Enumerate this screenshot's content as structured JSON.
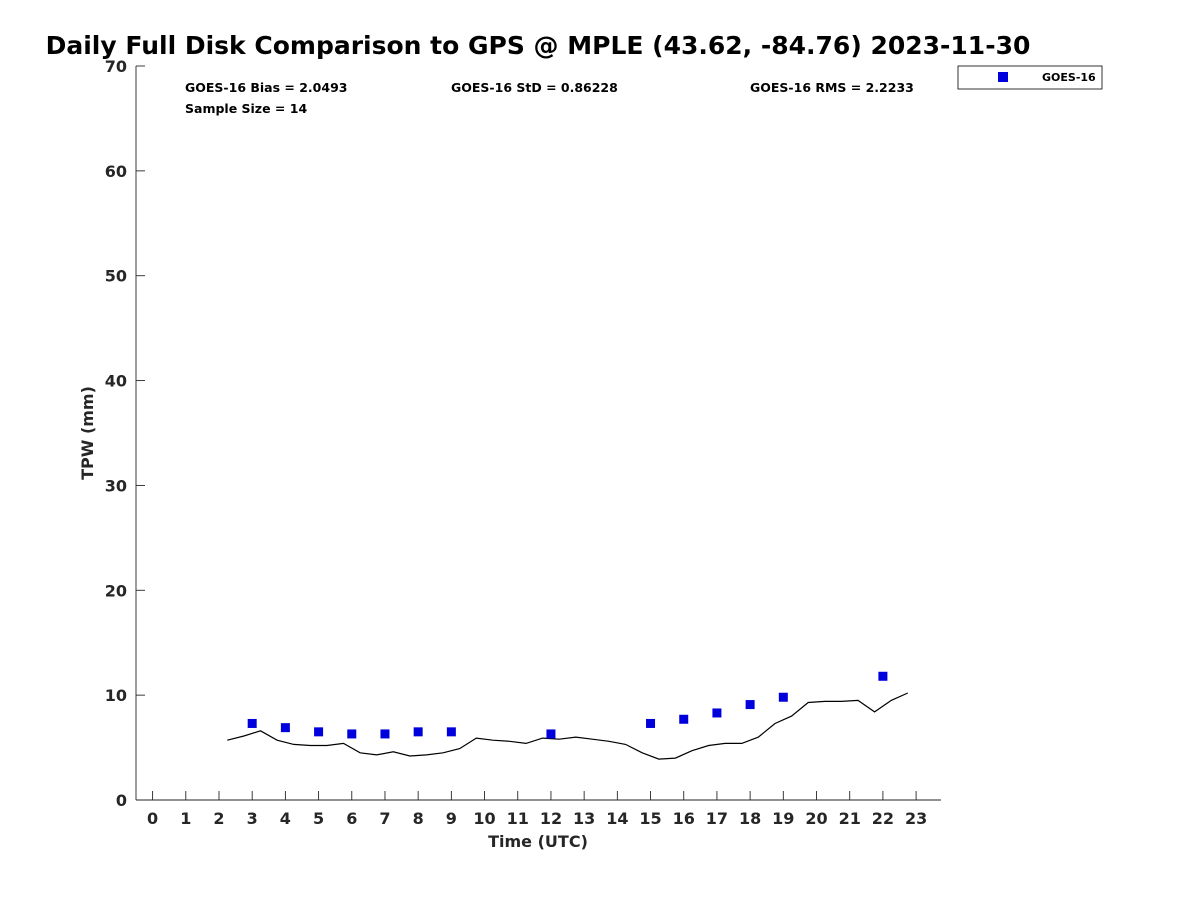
{
  "chart_data": {
    "type": "scatter",
    "title": "Daily Full Disk Comparison to GPS @ MPLE (43.62, -84.76) 2023-11-30",
    "xlabel": "Time (UTC)",
    "ylabel": "TPW (mm)",
    "xlim": [
      -0.5,
      23.75
    ],
    "ylim": [
      0,
      70
    ],
    "x_ticks": [
      0,
      1,
      2,
      3,
      4,
      5,
      6,
      7,
      8,
      9,
      10,
      11,
      12,
      13,
      14,
      15,
      16,
      17,
      18,
      19,
      20,
      21,
      22,
      23
    ],
    "y_ticks": [
      0,
      10,
      20,
      30,
      40,
      50,
      60,
      70
    ],
    "grid": false,
    "legend_position": "top-right",
    "stats": {
      "bias": "GOES-16 Bias = 2.0493",
      "std": "GOES-16 StD = 0.86228",
      "rms": "GOES-16 RMS = 2.2233",
      "sample_size": "Sample Size = 14"
    },
    "series": [
      {
        "name": "GOES-16",
        "type": "scatter",
        "color": "#0000dd",
        "x": [
          3,
          4,
          5,
          6,
          7,
          8,
          9,
          12,
          15,
          16,
          17,
          18,
          19,
          22
        ],
        "y": [
          7.3,
          6.9,
          6.5,
          6.3,
          6.3,
          6.5,
          6.5,
          6.3,
          7.3,
          7.7,
          8.3,
          9.1,
          9.8,
          11.8
        ]
      },
      {
        "type": "line",
        "color": "#000000",
        "x": [
          2.25,
          2.75,
          3.25,
          3.75,
          4.25,
          4.75,
          5.25,
          5.75,
          6.25,
          6.75,
          7.25,
          7.75,
          8.25,
          8.75,
          9.25,
          9.75,
          10.25,
          10.75,
          11.25,
          11.75,
          12.25,
          12.75,
          13.25,
          13.75,
          14.25,
          14.75,
          15.25,
          15.75,
          16.25,
          16.75,
          17.25,
          17.75,
          18.25,
          18.75,
          19.25,
          19.75,
          20.25,
          20.75,
          21.25,
          21.75,
          22.25,
          22.75
        ],
        "y": [
          5.7,
          6.1,
          6.6,
          5.7,
          5.3,
          5.2,
          5.2,
          5.4,
          4.5,
          4.3,
          4.6,
          4.2,
          4.3,
          4.5,
          4.9,
          5.9,
          5.7,
          5.6,
          5.4,
          5.9,
          5.8,
          6.0,
          5.8,
          5.6,
          5.3,
          4.5,
          3.9,
          4.0,
          4.7,
          5.2,
          5.4,
          5.4,
          6.0,
          7.3,
          8.0,
          9.3,
          9.4,
          9.4,
          9.5,
          8.4,
          9.5,
          10.2
        ]
      }
    ]
  }
}
